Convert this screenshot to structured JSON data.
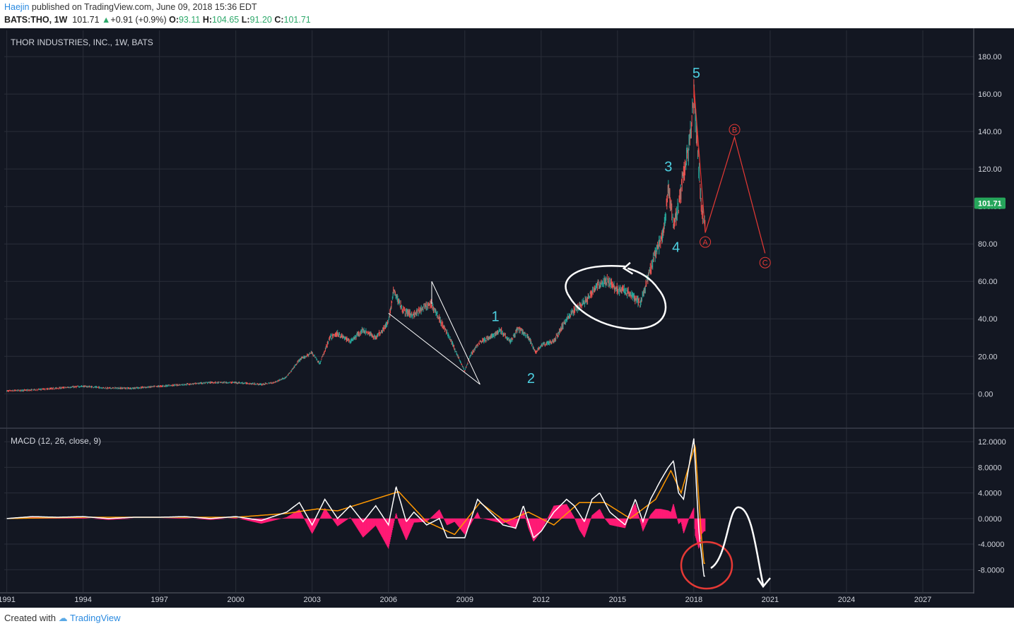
{
  "header": {
    "author": "Haejin",
    "published_text": "published on TradingView.com, June 09, 2018 15:36 EDT",
    "symbol": "BATS:THO, 1W",
    "last": "101.71",
    "change": "+0.91 (+0.9%)",
    "open_label": "O:",
    "open": "93.11",
    "high_label": "H:",
    "high": "104.65",
    "low_label": "L:",
    "low": "91.20",
    "close_label": "C:",
    "close": "101.71"
  },
  "footer": {
    "created_with": "Created with",
    "brand": "TradingView"
  },
  "colors": {
    "background": "#131722",
    "grid": "#2a2e39",
    "axis_text": "#d1d4dc",
    "up": "#26a69a",
    "down": "#ef5350",
    "wave_label": "#4dd0e1",
    "annotation_red": "#e53935",
    "annotation_white": "#ffffff",
    "macd_line": "#ffffff",
    "signal_line": "#ff9800",
    "histogram": "#ff1a75",
    "price_tag": "#26a65b"
  },
  "chart_data": [
    {
      "type": "line",
      "title": "THOR INDUSTRIES, INC., 1W, BATS",
      "x_ticks": [
        "1991",
        "1994",
        "1997",
        "2000",
        "2003",
        "2006",
        "2009",
        "2012",
        "2015",
        "2018",
        "2021",
        "2024",
        "2027"
      ],
      "x_range": [
        1990.9,
        2029.0
      ],
      "ylim": [
        -18,
        194
      ],
      "y_ticks": [
        0,
        20,
        40,
        60,
        80,
        100,
        120,
        140,
        160,
        180
      ],
      "y_tick_labels": [
        "0.00",
        "20.00",
        "40.00",
        "60.00",
        "80.00",
        "100.00",
        "120.00",
        "140.00",
        "160.00",
        "180.00"
      ],
      "last_price_label": "101.71",
      "last_price": 101.71,
      "series": [
        {
          "x": [
            1991.0,
            1992.0,
            1993.0,
            1994.0,
            1995.0,
            1996.0,
            1997.0,
            1998.0,
            1999.0,
            2000.0,
            2001.0,
            2001.5,
            2002.0,
            2002.5,
            2003.0,
            2003.3,
            2003.7,
            2004.0,
            2004.5,
            2005.0,
            2005.5,
            2006.0,
            2006.2,
            2006.6,
            2007.0,
            2007.4,
            2007.7,
            2008.0,
            2008.4,
            2008.8,
            2009.0,
            2009.2,
            2009.6,
            2010.0,
            2010.4,
            2010.8,
            2011.1,
            2011.5,
            2011.8,
            2012.0,
            2012.5,
            2013.0,
            2013.4,
            2013.8,
            2014.2,
            2014.6,
            2015.0,
            2015.3,
            2015.6,
            2015.9,
            2016.2,
            2016.5,
            2016.8,
            2017.0,
            2017.2,
            2017.4,
            2017.6,
            2017.8,
            2018.0,
            2018.1,
            2018.2,
            2018.3,
            2018.45
          ],
          "values": [
            1.5,
            2,
            3,
            4,
            3,
            3,
            4,
            5,
            6,
            6,
            5,
            6,
            9,
            18,
            22,
            16,
            30,
            32,
            28,
            34,
            30,
            38,
            55,
            44,
            42,
            46,
            48,
            40,
            30,
            18,
            12,
            20,
            28,
            30,
            34,
            28,
            35,
            30,
            22,
            26,
            28,
            40,
            46,
            50,
            58,
            60,
            56,
            55,
            52,
            48,
            62,
            75,
            85,
            110,
            90,
            100,
            118,
            130,
            160,
            140,
            120,
            100,
            90
          ]
        }
      ],
      "wave_labels": [
        {
          "text": "1",
          "x": 2010.2,
          "y": 41
        },
        {
          "text": "2",
          "x": 2011.6,
          "y": 8
        },
        {
          "text": "3",
          "x": 2017.0,
          "y": 121
        },
        {
          "text": "4",
          "x": 2017.3,
          "y": 78
        },
        {
          "text": "5",
          "x": 2018.1,
          "y": 171
        }
      ],
      "projection": [
        {
          "label": "A",
          "x": 2018.45,
          "y": 81
        },
        {
          "label": "B",
          "x": 2019.6,
          "y": 141
        },
        {
          "label": "C",
          "x": 2020.8,
          "y": 70
        }
      ]
    },
    {
      "type": "line",
      "title": "MACD (12, 26, close, 9)",
      "ylim": [
        -11.5,
        14
      ],
      "y_ticks": [
        12,
        8,
        4,
        0,
        -4,
        -8
      ],
      "y_tick_labels": [
        "12.0000",
        "8.0000",
        "4.0000",
        "0.0000",
        "-4.0000",
        "-8.0000"
      ],
      "series": [
        {
          "name": "MACD",
          "x": [
            1991.0,
            1992.0,
            1993.0,
            1994.0,
            1995.0,
            1996.0,
            1997.0,
            1998.0,
            1999.0,
            2000.0,
            2001.0,
            2002.0,
            2002.5,
            2003.0,
            2003.5,
            2004.0,
            2004.5,
            2005.0,
            2005.5,
            2006.0,
            2006.3,
            2006.7,
            2007.0,
            2007.5,
            2008.0,
            2008.3,
            2008.7,
            2009.0,
            2009.5,
            2010.0,
            2010.5,
            2011.0,
            2011.3,
            2011.7,
            2012.0,
            2012.5,
            2013.0,
            2013.3,
            2013.7,
            2014.0,
            2014.3,
            2014.7,
            2015.0,
            2015.3,
            2015.7,
            2016.0,
            2016.3,
            2016.7,
            2017.0,
            2017.2,
            2017.4,
            2017.6,
            2017.8,
            2018.0,
            2018.2,
            2018.4
          ],
          "values": [
            0,
            0.3,
            0.2,
            0.3,
            0,
            0.2,
            0.2,
            0.3,
            0,
            0.3,
            -0.3,
            1,
            2.5,
            -1,
            3,
            0,
            2,
            -0.5,
            2,
            -1,
            5,
            -0.5,
            1,
            -1,
            0,
            -3,
            -3,
            -3,
            3,
            1,
            -1,
            -1.5,
            2,
            -3,
            -2,
            1,
            3,
            2,
            -0.5,
            3,
            4,
            1,
            0,
            -1,
            3,
            -0.5,
            3,
            6,
            8,
            9,
            4,
            3,
            8,
            12.5,
            -2,
            -9
          ]
        },
        {
          "name": "Signal",
          "x": [
            1991.0,
            1994.0,
            1997.0,
            2000.0,
            2002.0,
            2003.2,
            2004.0,
            2006.4,
            2007.5,
            2008.6,
            2009.6,
            2010.6,
            2011.5,
            2012.5,
            2013.5,
            2014.5,
            2015.5,
            2016.5,
            2017.1,
            2017.5,
            2018.05,
            2018.3,
            2018.4
          ],
          "values": [
            0,
            0.2,
            0.2,
            0.2,
            0.8,
            1.5,
            1.2,
            4.2,
            -0.5,
            -2.5,
            2.5,
            -0.5,
            1,
            -1,
            2.5,
            2.5,
            0,
            3,
            7.5,
            4,
            11.5,
            -3,
            -7
          ]
        }
      ],
      "histogram_note": "MACD - Signal"
    }
  ]
}
